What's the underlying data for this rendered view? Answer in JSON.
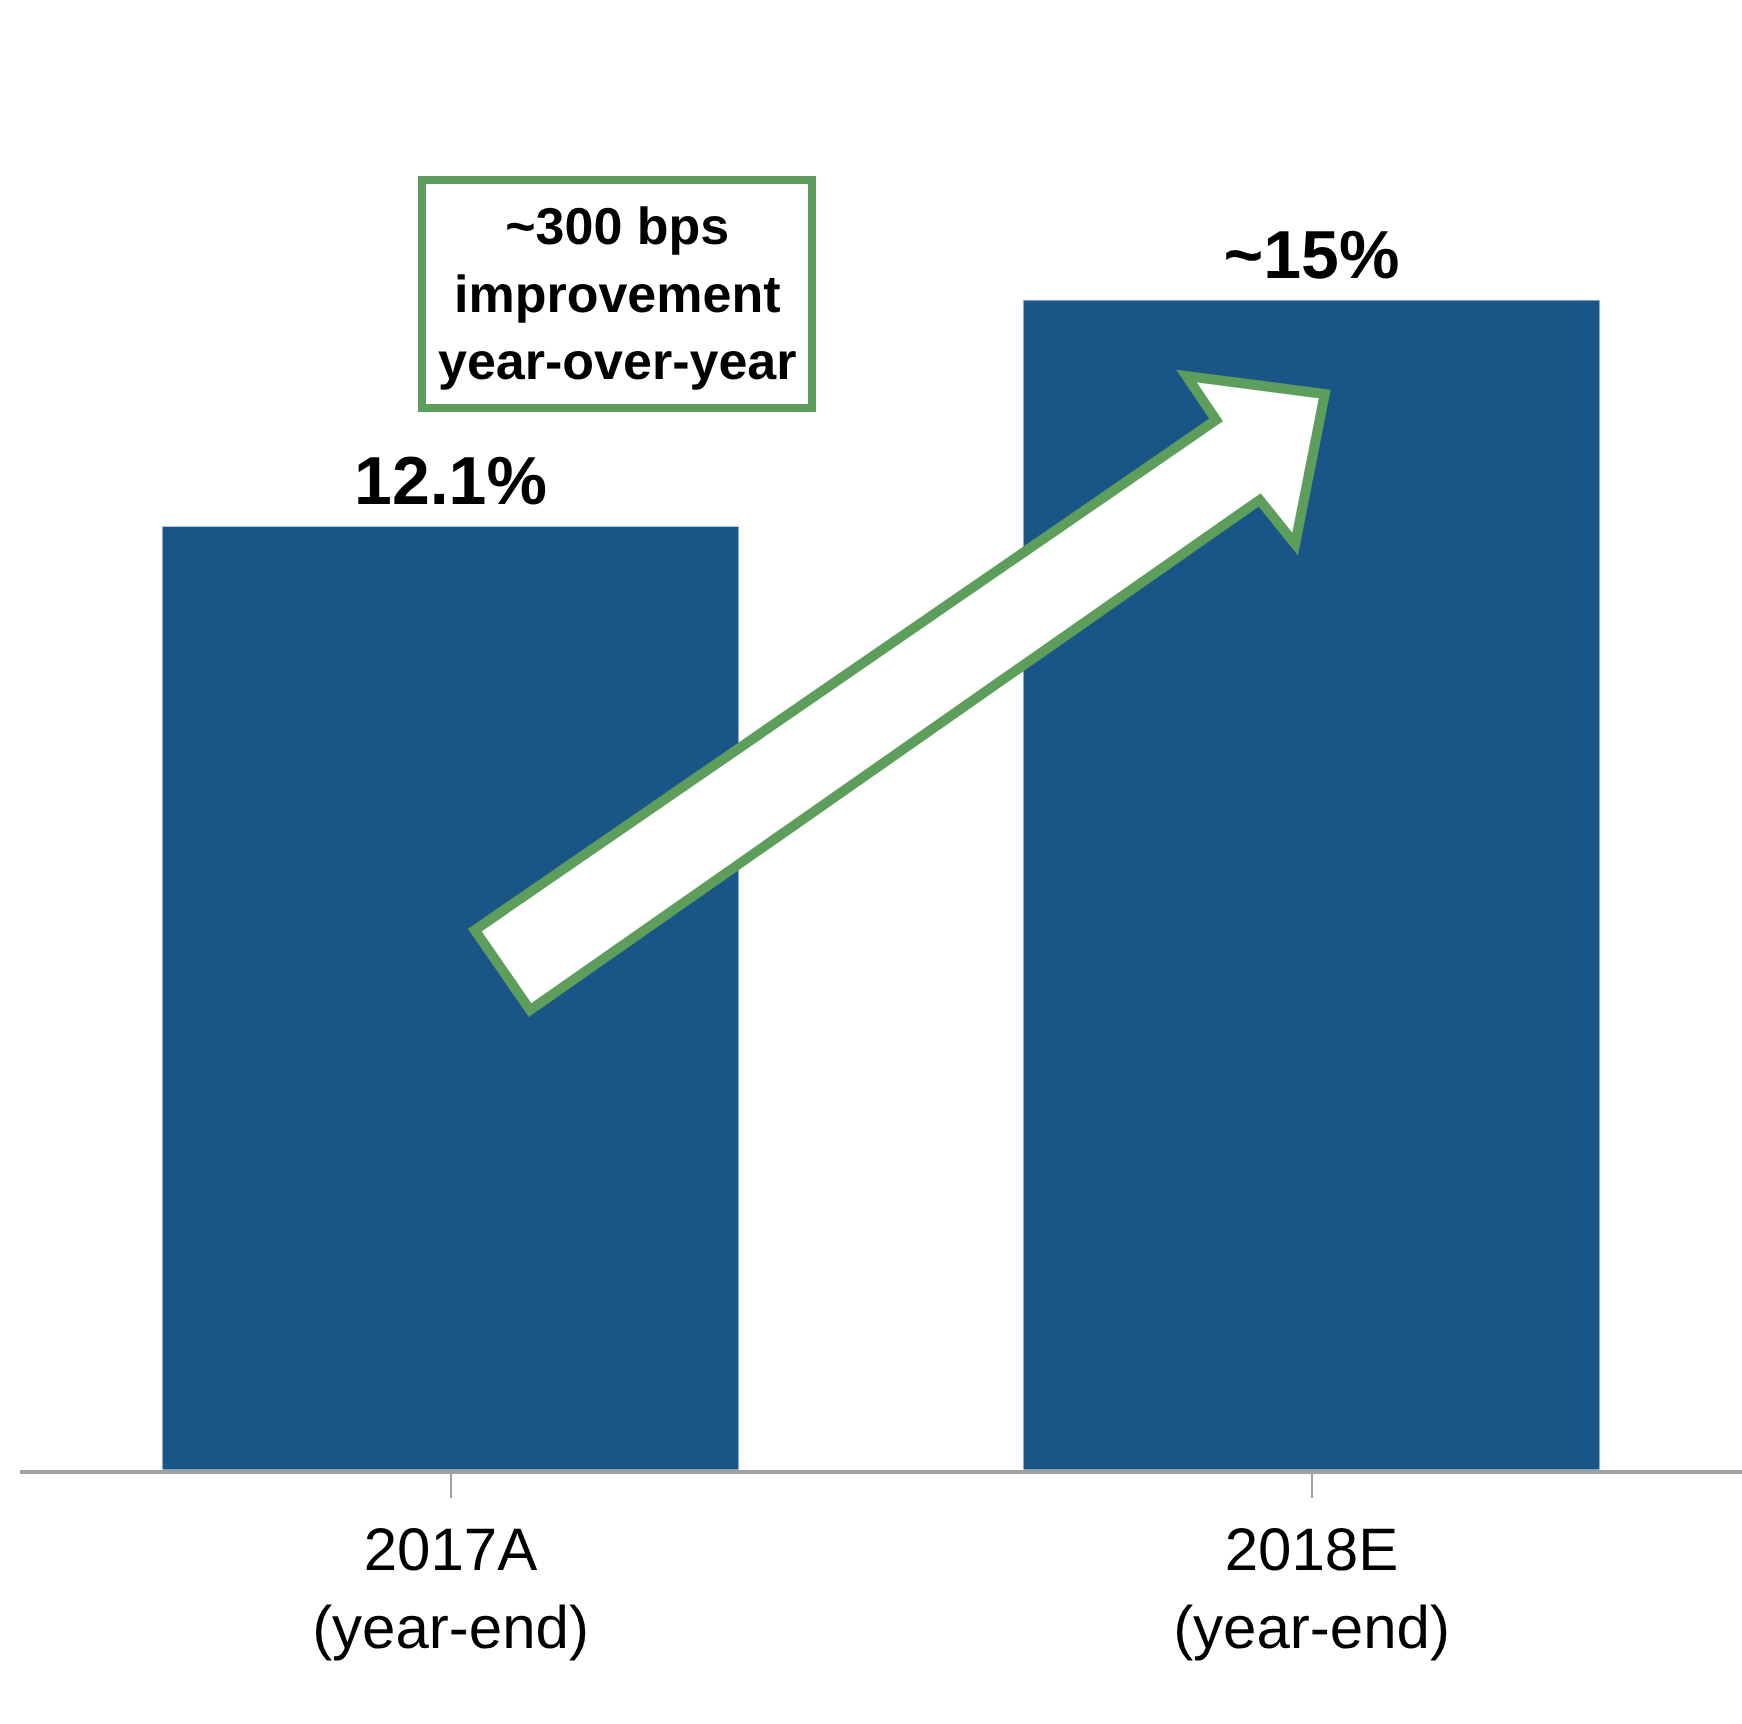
{
  "chart_data": {
    "type": "bar",
    "categories": [
      "2017A\n(year-end)",
      "2018E\n(year-end)"
    ],
    "values": [
      12.1,
      15
    ],
    "value_labels": [
      "12.1%",
      "~15%"
    ],
    "color": "#1a5587",
    "annotations": [
      "~300 bps\nimprovement\nyear-over-year"
    ]
  }
}
